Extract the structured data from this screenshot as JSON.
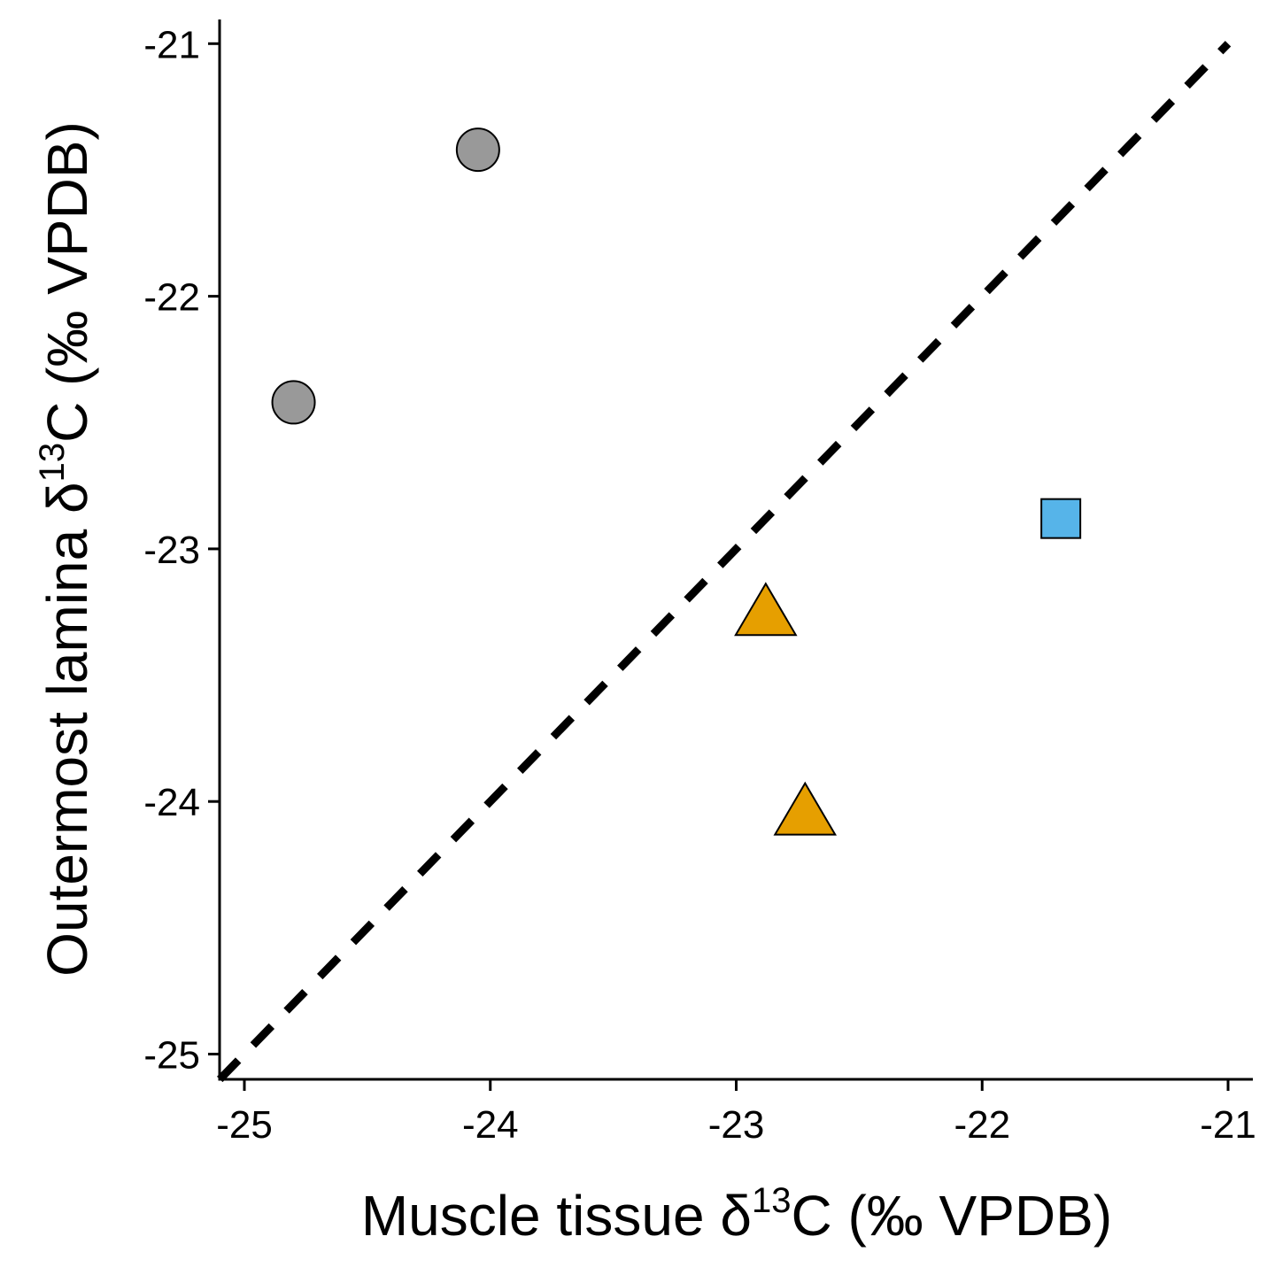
{
  "chart_data": {
    "type": "scatter",
    "xlabel": {
      "prefix": "Muscle tissue δ",
      "sup": "13",
      "suffix": "C (‰ VPDB)"
    },
    "ylabel": {
      "prefix": "Outermost lamina δ",
      "sup": "13",
      "suffix": "C (‰ VPDB)"
    },
    "xlim": [
      -25.1,
      -20.9
    ],
    "ylim": [
      -25.1,
      -20.9
    ],
    "xticks": [
      -25,
      -24,
      -23,
      -22,
      -21
    ],
    "yticks": [
      -25,
      -24,
      -23,
      -22,
      -21
    ],
    "xtick_labels": [
      "-25",
      "-24",
      "-23",
      "-22",
      "-21"
    ],
    "ytick_labels": [
      "-25",
      "-24",
      "-23",
      "-22",
      "-21"
    ],
    "grid": false,
    "reference_line": {
      "type": "1:1",
      "style": "dashed",
      "color": "#000000",
      "from": [
        -25.1,
        -25.1
      ],
      "to": [
        -21.0,
        -21.0
      ]
    },
    "points": [
      {
        "x": -24.05,
        "y": -21.42,
        "shape": "circle",
        "color": "#999999"
      },
      {
        "x": -24.8,
        "y": -22.42,
        "shape": "circle",
        "color": "#999999"
      },
      {
        "x": -21.68,
        "y": -22.88,
        "shape": "square",
        "color": "#56B4E9"
      },
      {
        "x": -22.88,
        "y": -23.25,
        "shape": "triangle",
        "color": "#E69F00"
      },
      {
        "x": -22.72,
        "y": -24.04,
        "shape": "triangle",
        "color": "#E69F00"
      }
    ]
  }
}
